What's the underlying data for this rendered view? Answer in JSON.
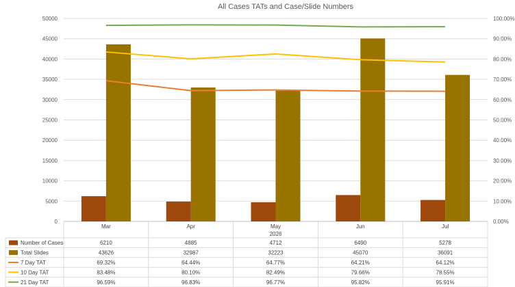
{
  "chart_data": {
    "type": "bar",
    "title": "All Cases TATs and Case/Slide Numbers",
    "categories": [
      "Mar",
      "Apr",
      "May",
      "Jun",
      "Jul"
    ],
    "category_group": "2026",
    "y_left": {
      "ylim": [
        0,
        50000
      ],
      "ticks": [
        "0",
        "5000",
        "10000",
        "15000",
        "20000",
        "25000",
        "30000",
        "35000",
        "40000",
        "45000",
        "50000"
      ]
    },
    "y_right": {
      "ylim": [
        0,
        100
      ],
      "ticks": [
        "0.00%",
        "10.00%",
        "20.00%",
        "30.00%",
        "40.00%",
        "50.00%",
        "60.00%",
        "70.00%",
        "80.00%",
        "90.00%",
        "100.00%"
      ]
    },
    "series": [
      {
        "name": "Number of Cases",
        "kind": "bar",
        "axis": "left",
        "color": "#9E480E",
        "values": [
          6210,
          4885,
          4712,
          6490,
          5278
        ],
        "labels": [
          "6210",
          "4885",
          "4712",
          "6490",
          "5278"
        ]
      },
      {
        "name": "Total Slides",
        "kind": "bar",
        "axis": "left",
        "color": "#997300",
        "values": [
          43626,
          32987,
          32223,
          45070,
          36091
        ],
        "labels": [
          "43626",
          "32987",
          "32223",
          "45070",
          "36091"
        ]
      },
      {
        "name": "7 Day TAT",
        "kind": "line",
        "axis": "right",
        "color": "#ED7D31",
        "values": [
          69.32,
          64.44,
          64.77,
          64.21,
          64.12
        ],
        "labels": [
          "69.32%",
          "64.44%",
          "64.77%",
          "64.21%",
          "64.12%"
        ]
      },
      {
        "name": "10 Day TAT",
        "kind": "line",
        "axis": "right",
        "color": "#FFC000",
        "values": [
          83.48,
          80.1,
          82.49,
          79.66,
          78.55
        ],
        "labels": [
          "83.48%",
          "80.10%",
          "82.49%",
          "79.66%",
          "78.55%"
        ]
      },
      {
        "name": "21 Day TAT",
        "kind": "line",
        "axis": "right",
        "color": "#70AD47",
        "values": [
          96.59,
          96.83,
          96.77,
          95.82,
          95.91
        ],
        "labels": [
          "96.59%",
          "96.83%",
          "96.77%",
          "95.82%",
          "95.91%"
        ]
      }
    ],
    "legend": "data-table-bottom",
    "grid": true
  }
}
